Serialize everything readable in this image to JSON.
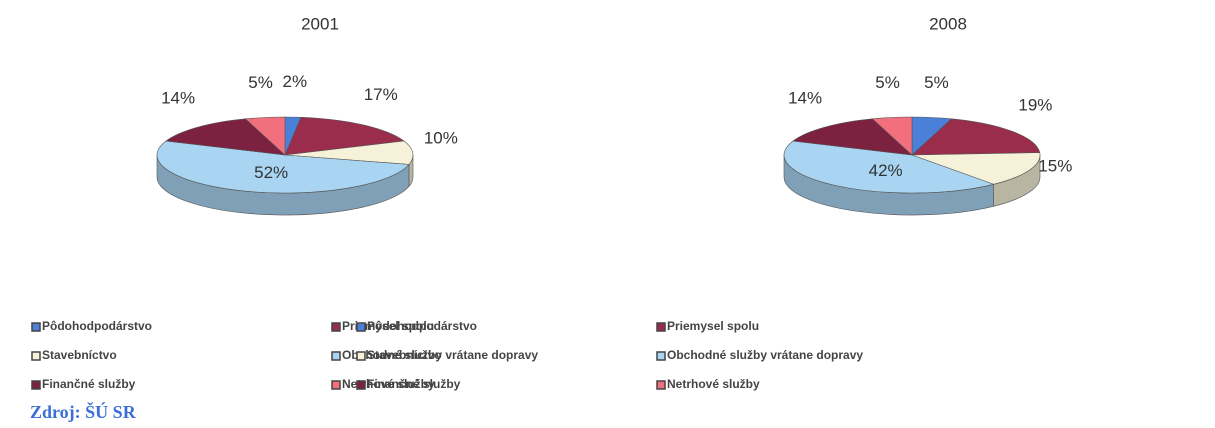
{
  "chart_data": [
    {
      "type": "pie",
      "title": "2001",
      "categories": [
        "Pôdohodpodárstvo",
        "Priemysel spolu",
        "Stavebníctvo",
        "Obchodné služby vrátane dopravy",
        "Finančné služby",
        "Netrhové služby"
      ],
      "values": [
        2,
        17,
        10,
        52,
        14,
        5
      ],
      "value_labels": [
        "2%",
        "17%",
        "10%",
        "52%",
        "14%",
        "5%"
      ],
      "colors": [
        "#4a80d8",
        "#9a2c4c",
        "#f6f1d9",
        "#a9d5f2",
        "#7d2140",
        "#f2707e"
      ]
    },
    {
      "type": "pie",
      "title": "2008",
      "categories": [
        "Pôdohodpodárstvo",
        "Priemysel spolu",
        "Stavebníctvo",
        "Obchodné služby vrátane dopravy",
        "Finančné služby",
        "Netrhové služby"
      ],
      "values": [
        5,
        19,
        15,
        42,
        14,
        5
      ],
      "value_labels": [
        "5%",
        "19%",
        "15%",
        "42%",
        "14%",
        "5%"
      ],
      "colors": [
        "#4a80d8",
        "#9a2c4c",
        "#f6f1d9",
        "#a9d5f2",
        "#7d2140",
        "#f2707e"
      ]
    }
  ],
  "source": "Zdroj: ŠÚ SR"
}
